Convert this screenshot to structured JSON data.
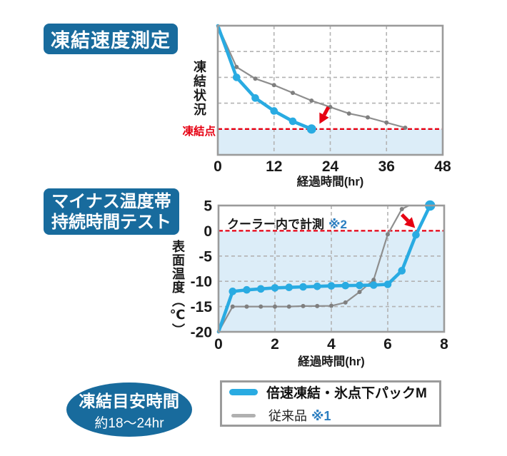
{
  "title_badges": {
    "test1": "凍結速度測定",
    "test2_line1": "マイナス温度帯",
    "test2_line2": "持続時間テスト"
  },
  "freeze_time_badge": {
    "line1": "凍結目安時間",
    "line2": "約18〜24hr"
  },
  "legend": {
    "item1": "倍速凍結・氷点下パックM",
    "item2": "従来品",
    "item2_note": "※1"
  },
  "colors": {
    "badge_blue": "#186b9d",
    "accent_blue": "#29abe2",
    "gray_line": "#8e8e8e",
    "gray_dot": "#7f7f7f",
    "red": "#e60012",
    "note_blue": "#2a7dc0",
    "light_blue_fill": "#dcedf8",
    "grid_gray": "#b3b3b3",
    "border_gray": "#9b9b9b"
  },
  "chart_data": [
    {
      "type": "line",
      "title": "凍結速度測定",
      "xlabel": "経過時間(hr)",
      "ylabel": "凍結状況",
      "red_line_label": "凍結点",
      "y_unit": "relative freezing-state units (0 = 凍結点, unlabeled axis)",
      "xlim": [
        0,
        48
      ],
      "x_ticks": [
        0,
        12,
        24,
        36,
        48
      ],
      "ylim": [
        -1,
        4
      ],
      "vgrid": [
        12,
        24,
        36
      ],
      "hgrid": [
        1,
        2,
        3
      ],
      "red_dashed_y": 0,
      "legend_position": "none",
      "series": [
        {
          "name": "倍速凍結・氷点下パックM",
          "color": "#29abe2",
          "x": [
            0,
            4,
            8,
            12,
            16,
            20
          ],
          "y": [
            4.0,
            2.0,
            1.2,
            0.7,
            0.3,
            0.0
          ],
          "end_marker": true
        },
        {
          "name": "従来品 ※1",
          "color": "#8e8e8e",
          "x": [
            0,
            4,
            8,
            12,
            16,
            20,
            24,
            28,
            32,
            36,
            40
          ],
          "y": [
            4.0,
            2.4,
            1.95,
            1.7,
            1.4,
            1.1,
            0.85,
            0.6,
            0.45,
            0.25,
            0.05
          ],
          "end_marker": true
        }
      ],
      "arrow": {
        "from": [
          23.6,
          0.85
        ],
        "to": [
          21.7,
          0.2
        ]
      }
    },
    {
      "type": "line",
      "title": "マイナス温度帯持続時間テスト",
      "xlabel": "経過時間(hr)",
      "ylabel": "表面温度（℃）",
      "annotation": "クーラー内で計測",
      "annotation_note": "※2",
      "xlim": [
        0,
        8
      ],
      "x_ticks": [
        0,
        2,
        4,
        6,
        8
      ],
      "ylim": [
        -20,
        5
      ],
      "y_ticks": [
        5,
        0,
        -5,
        -10,
        -15,
        -20
      ],
      "vgrid": [
        2,
        4,
        6
      ],
      "hgrid": [
        -5,
        -10,
        -15
      ],
      "red_dashed_y": 0,
      "legend_position": "below",
      "series": [
        {
          "name": "倍速凍結・氷点下パックM",
          "color": "#29abe2",
          "x": [
            0,
            0.5,
            1,
            1.5,
            2,
            2.5,
            3,
            3.5,
            4,
            4.5,
            5,
            5.5,
            6,
            6.5,
            7,
            7.5
          ],
          "y": [
            -20,
            -12,
            -11.7,
            -11.5,
            -11.3,
            -11.2,
            -11.1,
            -11.0,
            -10.9,
            -10.85,
            -10.8,
            -10.75,
            -10.6,
            -7.9,
            -0.8,
            5
          ],
          "end_marker": true
        },
        {
          "name": "従来品 ※1",
          "color": "#8e8e8e",
          "x": [
            0,
            0.5,
            1,
            1.5,
            2,
            2.5,
            3,
            3.5,
            4,
            4.5,
            5,
            5.5,
            6,
            6.5,
            6.75
          ],
          "y": [
            -20,
            -15,
            -15,
            -15,
            -15,
            -15,
            -14.9,
            -14.9,
            -14.85,
            -14.2,
            -12.1,
            -9.7,
            -0.7,
            4.3,
            5
          ],
          "end_marker": false
        }
      ],
      "arrow": {
        "from": [
          6.5,
          3.2
        ],
        "to": [
          6.97,
          0.55
        ]
      }
    }
  ]
}
